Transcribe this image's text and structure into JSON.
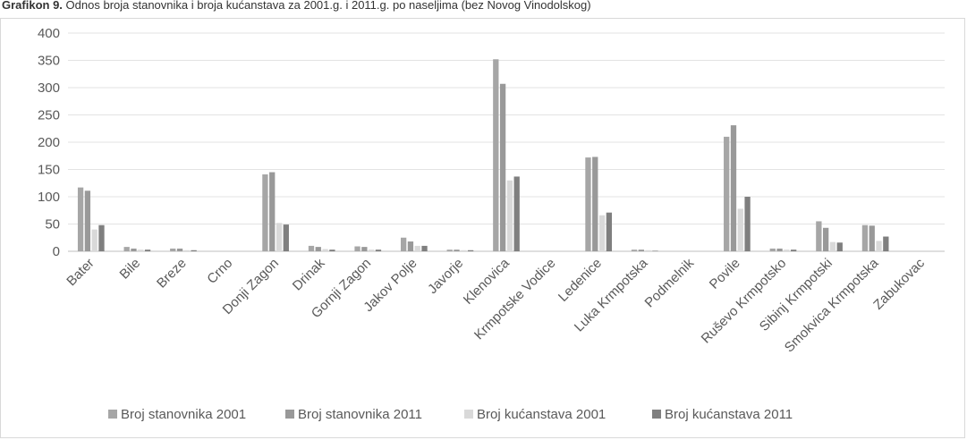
{
  "caption": {
    "label": "Grafikon 9.",
    "text": "Odnos broja stanovnika i broja kućanstava za 2001.g. i 2011.g. po naseljima (bez Novog Vinodolskog)"
  },
  "chart_data": {
    "type": "bar",
    "title": "",
    "xlabel": "",
    "ylabel": "",
    "ylim": [
      0,
      400
    ],
    "yticks": [
      0,
      50,
      100,
      150,
      200,
      250,
      300,
      350,
      400
    ],
    "grid": true,
    "legend_position": "bottom",
    "categories": [
      "Bater",
      "Bile",
      "Breze",
      "Crno",
      "Donji Zagon",
      "Drinak",
      "Gornji Zagon",
      "Jakov Polje",
      "Javorje",
      "Klenovica",
      "Krmpotske Vodice",
      "Ledenice",
      "Luka Krmpotska",
      "Podmelnik",
      "Povile",
      "Ruševo Krmpotsko",
      "Sibinj Krmpotski",
      "Smokvica Krmpotska",
      "Zabukovac"
    ],
    "series": [
      {
        "name": "Broj stanovnika 2001",
        "color": "#a6a6a6",
        "values": [
          117,
          8,
          5,
          0,
          141,
          10,
          9,
          25,
          3,
          352,
          0,
          172,
          3,
          0,
          210,
          5,
          55,
          48,
          0
        ]
      },
      {
        "name": "Broj stanovnika 2011",
        "color": "#999999",
        "values": [
          111,
          5,
          5,
          0,
          145,
          8,
          8,
          18,
          3,
          307,
          0,
          173,
          3,
          0,
          231,
          5,
          43,
          47,
          0
        ]
      },
      {
        "name": "Broj kućanstava 2001",
        "color": "#d9d9d9",
        "values": [
          40,
          3,
          2,
          0,
          52,
          4,
          3,
          10,
          2,
          130,
          0,
          66,
          2,
          0,
          78,
          3,
          17,
          19,
          0
        ]
      },
      {
        "name": "Broj kućanstava 2011",
        "color": "#7f7f7f",
        "values": [
          48,
          3,
          2,
          0,
          49,
          3,
          3,
          10,
          2,
          137,
          0,
          71,
          1,
          0,
          100,
          3,
          16,
          27,
          0
        ]
      }
    ]
  }
}
